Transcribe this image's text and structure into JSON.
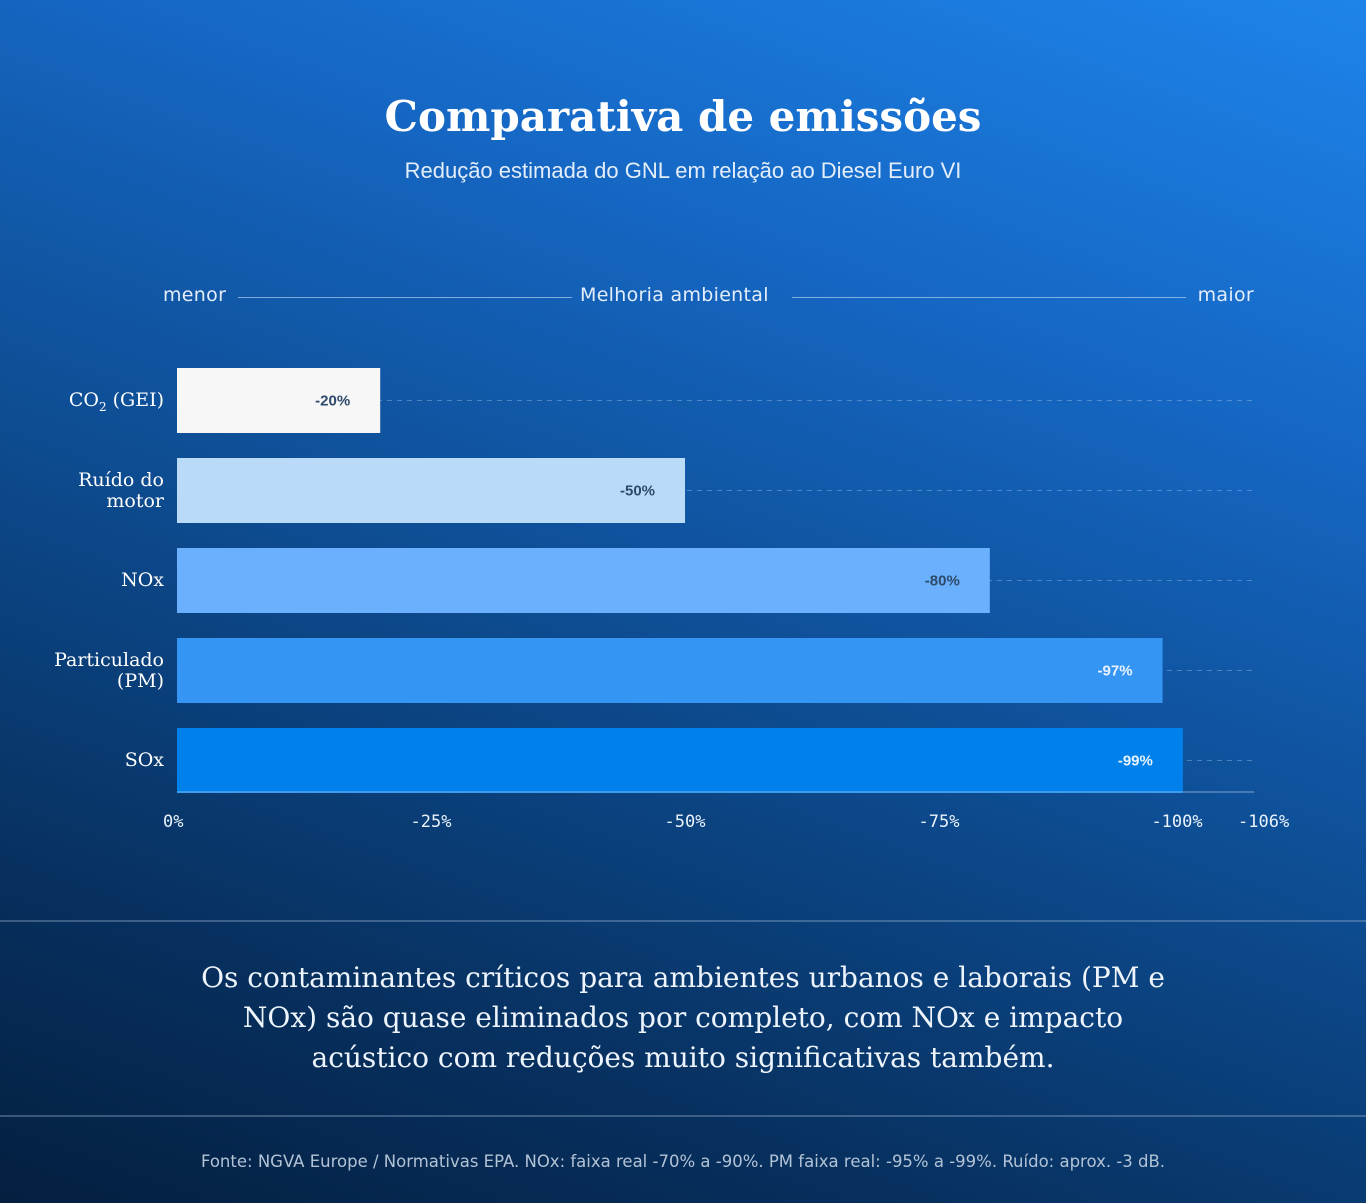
{
  "header": {
    "title": "Comparativa de emissões",
    "subtitle": "Redução estimada do GNL em relação ao Diesel Euro VI"
  },
  "scale": {
    "left": "menor",
    "center": "Melhoria ambiental",
    "right": "maior"
  },
  "chart_data": {
    "type": "bar",
    "orientation": "horizontal",
    "categories": [
      {
        "main": "CO",
        "sub": "2",
        "rest": " (GEI)",
        "line1": "",
        "line2": ""
      },
      {
        "main": "",
        "sub": "",
        "rest": "",
        "line1": "Ruído do",
        "line2": "motor"
      },
      {
        "main": "NOx",
        "sub": "",
        "rest": "",
        "line1": "",
        "line2": ""
      },
      {
        "main": "",
        "sub": "",
        "rest": "",
        "line1": "Particulado",
        "line2": "(PM)"
      },
      {
        "main": "SOx",
        "sub": "",
        "rest": "",
        "line1": "",
        "line2": ""
      }
    ],
    "values": [
      -20,
      -50,
      -80,
      -97,
      -99
    ],
    "data_labels": [
      "-20%",
      "-50%",
      "-80%",
      "-97%",
      "-99%"
    ],
    "colors": [
      "#f7f7f8",
      "#b9dbf8",
      "#6ab0fc",
      "#3595f3",
      "#0080ea"
    ],
    "label_colors": [
      "#2e4a6a",
      "#2e4a6a",
      "#2e4a6a",
      "#eaf3ff",
      "#eaf3ff"
    ],
    "xlim": [
      0,
      -106
    ],
    "x_ticks": [
      0,
      -25,
      -50,
      -75,
      -100,
      -106
    ],
    "x_tick_labels": [
      "0%",
      "-25%",
      "-50%",
      "-75%",
      "-100%",
      "-106%"
    ],
    "gridlines": "dashed row guides",
    "legend": "none"
  },
  "note": "Os contaminantes críticos para ambientes urbanos e laborais (PM e NOx) são quase eliminados por completo, com NOx e impacto acústico com reduções muito significativas também.",
  "source": "Fonte: NGVA Europe / Normativas EPA. NOx: faixa real -70% a -90%. PM faixa real: -95% a -99%. Ruído: aprox. -3 dB."
}
